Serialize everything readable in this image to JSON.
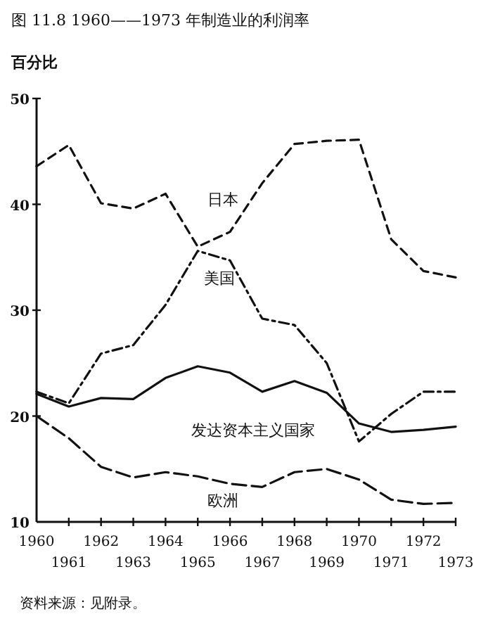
{
  "chart_data": {
    "type": "line",
    "title": "图 11.8 1960——1973 年制造业的利润率",
    "ylabel": "百分比",
    "categories": [
      "1960",
      "1961",
      "1962",
      "1963",
      "1964",
      "1965",
      "1966",
      "1967",
      "1968",
      "1969",
      "1970",
      "1971",
      "1972",
      "1973"
    ],
    "series": [
      {
        "name": "日本",
        "color": "#111111",
        "line_style": "dashed",
        "values": [
          43.6,
          45.6,
          40.1,
          39.6,
          41.0,
          36.0,
          37.4,
          42.0,
          45.7,
          46.0,
          46.1,
          36.7,
          33.7,
          33.1
        ]
      },
      {
        "name": "美国",
        "color": "#111111",
        "line_style": "dashdot",
        "values": [
          22.3,
          21.2,
          25.9,
          26.7,
          30.5,
          35.6,
          34.7,
          29.2,
          28.6,
          25.0,
          17.6,
          20.2,
          22.3,
          22.3
        ]
      },
      {
        "name": "发达资本主义国家",
        "color": "#111111",
        "line_style": "solid",
        "values": [
          22.1,
          20.9,
          21.7,
          21.6,
          23.6,
          24.7,
          24.1,
          22.3,
          23.3,
          22.2,
          19.3,
          18.5,
          18.7,
          19.0
        ]
      },
      {
        "name": "欧洲",
        "color": "#111111",
        "line_style": "dashed",
        "values": [
          20.0,
          17.9,
          15.2,
          14.2,
          14.7,
          14.3,
          13.6,
          13.3,
          14.7,
          15.0,
          14.0,
          12.1,
          11.7,
          11.8
        ]
      }
    ],
    "ylim": [
      10,
      50
    ],
    "yticks": [
      10,
      20,
      30,
      40,
      50
    ],
    "grid": false,
    "legend": false,
    "marker": "none",
    "annotations": [
      "资料来源：见附录。"
    ]
  }
}
